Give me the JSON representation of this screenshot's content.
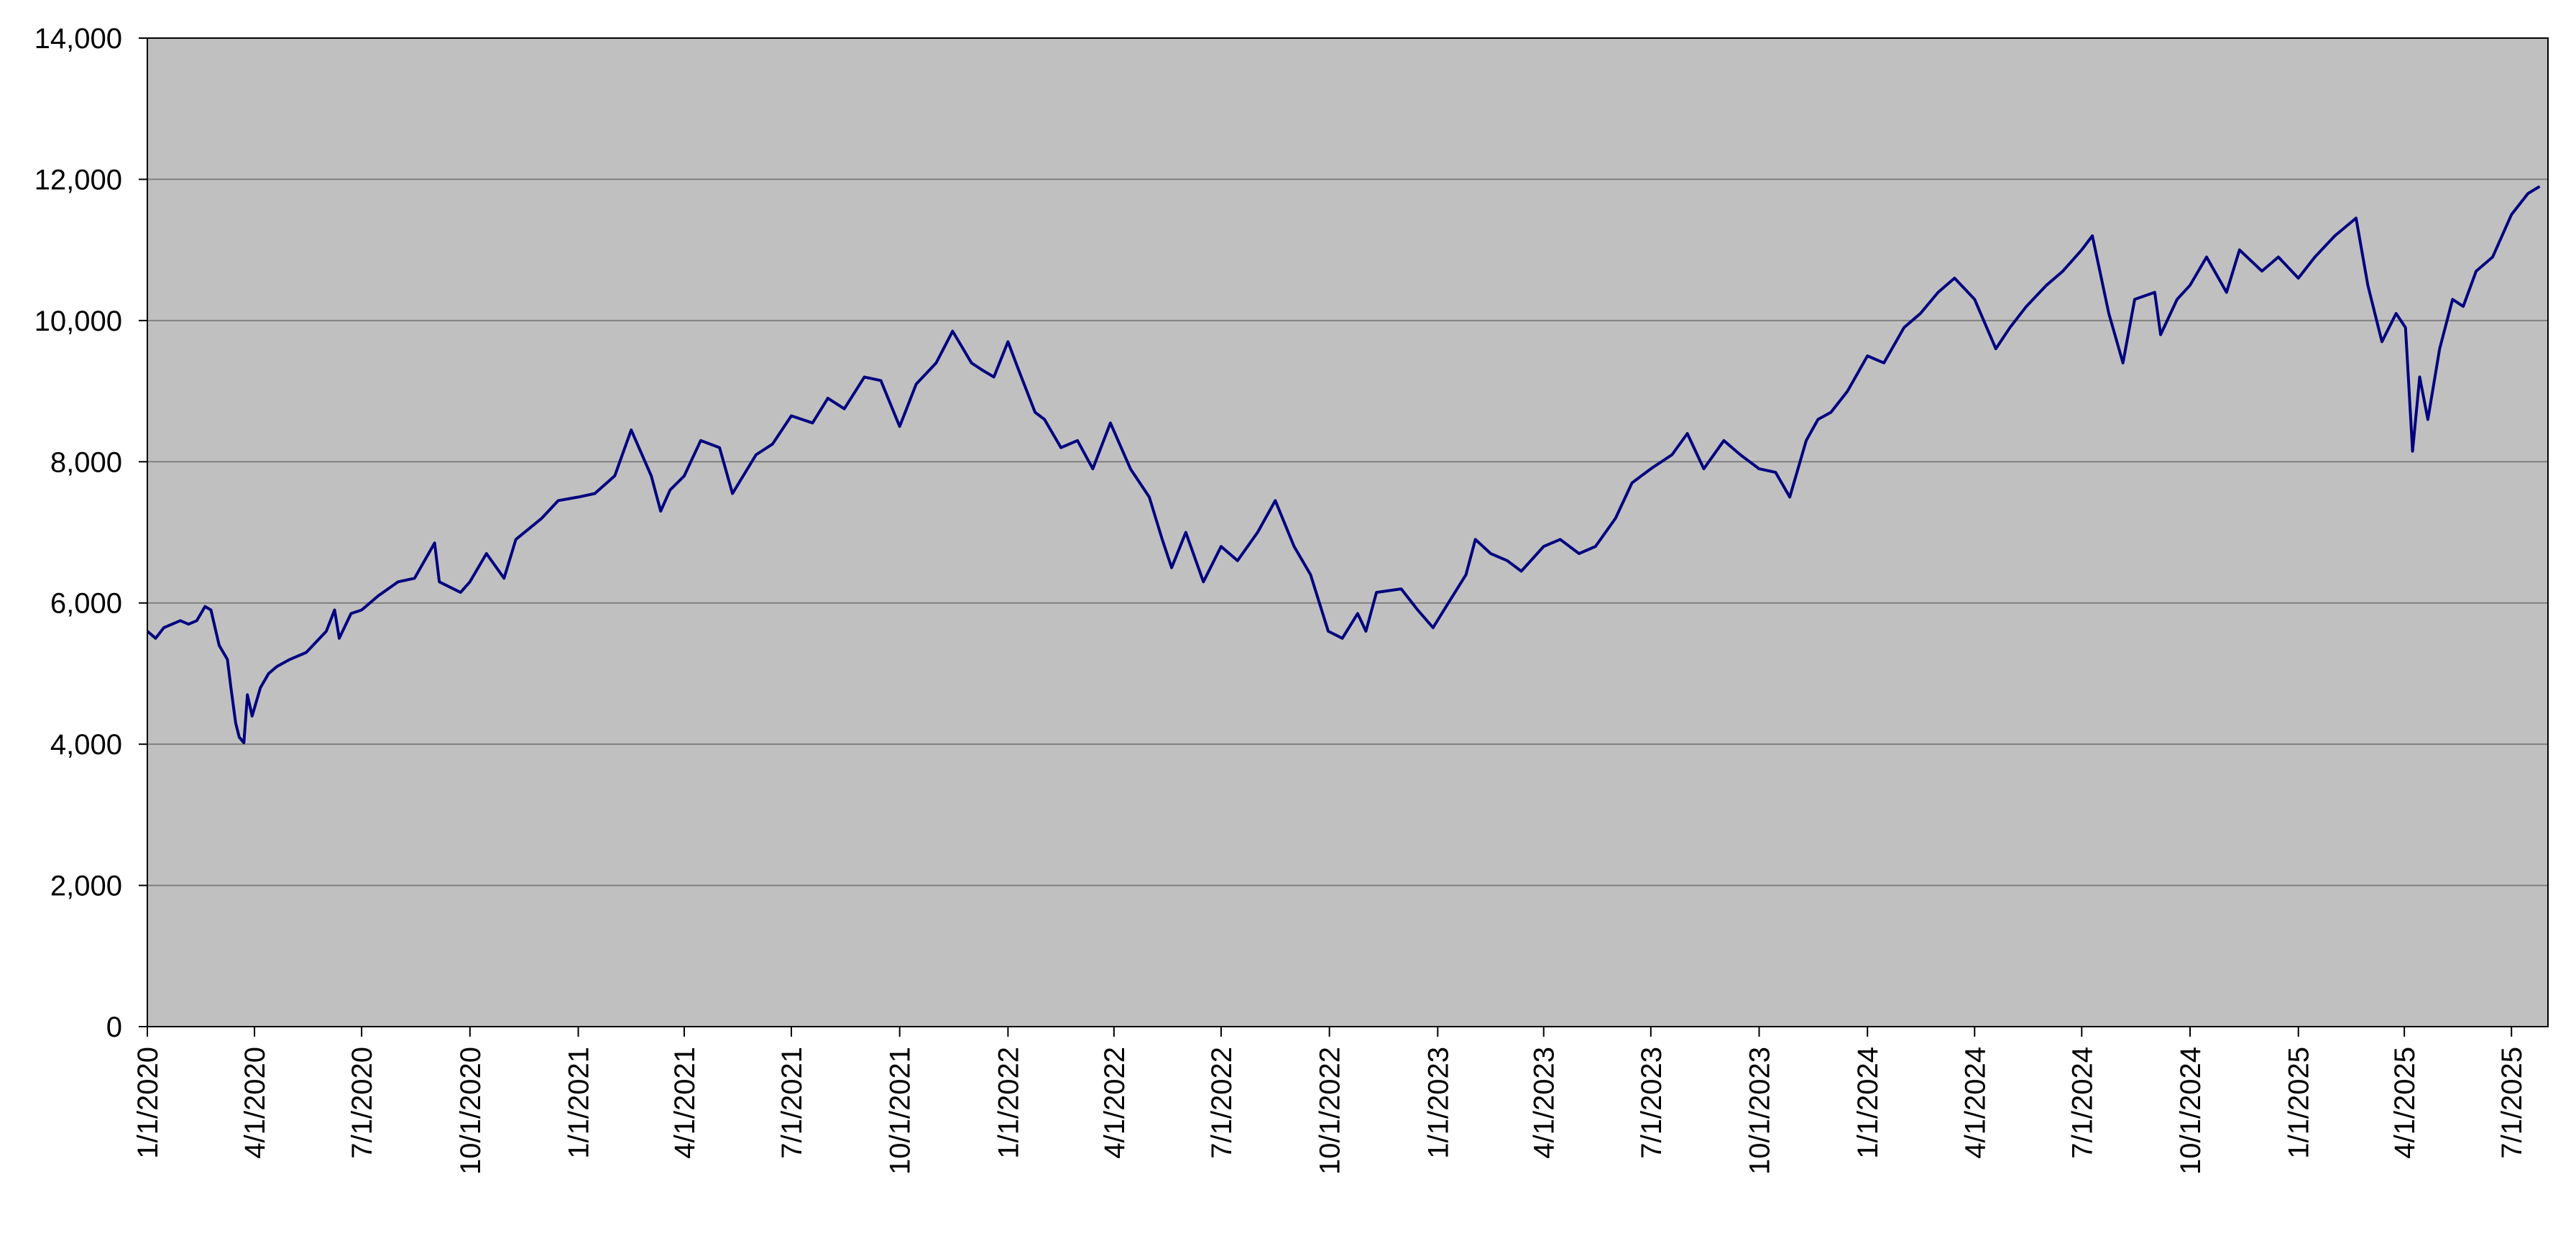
{
  "chart_data": {
    "type": "line",
    "title": "",
    "xlabel": "",
    "ylabel": "",
    "x_ticks": [
      "1/1/2020",
      "4/1/2020",
      "7/1/2020",
      "10/1/2020",
      "1/1/2021",
      "4/1/2021",
      "7/1/2021",
      "10/1/2021",
      "1/1/2022",
      "4/1/2022",
      "7/1/2022",
      "10/1/2022",
      "1/1/2023",
      "4/1/2023",
      "7/1/2023",
      "10/1/2023",
      "1/1/2024",
      "4/1/2024",
      "7/1/2024",
      "10/1/2024",
      "1/1/2025",
      "4/1/2025",
      "7/1/2025"
    ],
    "xlim": [
      "2020-01-01",
      "2025-08-01"
    ],
    "y_ticks": [
      "0",
      "2,000",
      "4,000",
      "6,000",
      "8,000",
      "10,000",
      "12,000",
      "14,000"
    ],
    "ylim": [
      0,
      14000
    ],
    "grid": "horizontal",
    "legend": "none",
    "colors": {
      "plot_background": "#c0c0c0",
      "line": "#000080",
      "gridline": "#808080"
    },
    "series": [
      {
        "values": [
          [
            "2020-01-01",
            5600
          ],
          [
            "2020-01-08",
            5500
          ],
          [
            "2020-01-15",
            5650
          ],
          [
            "2020-01-22",
            5700
          ],
          [
            "2020-01-29",
            5750
          ],
          [
            "2020-02-05",
            5700
          ],
          [
            "2020-02-12",
            5750
          ],
          [
            "2020-02-19",
            5950
          ],
          [
            "2020-02-24",
            5900
          ],
          [
            "2020-03-02",
            5400
          ],
          [
            "2020-03-09",
            5200
          ],
          [
            "2020-03-12",
            4800
          ],
          [
            "2020-03-16",
            4300
          ],
          [
            "2020-03-19",
            4100
          ],
          [
            "2020-03-23",
            4020
          ],
          [
            "2020-03-26",
            4700
          ],
          [
            "2020-03-30",
            4400
          ],
          [
            "2020-04-06",
            4800
          ],
          [
            "2020-04-13",
            5000
          ],
          [
            "2020-04-20",
            5100
          ],
          [
            "2020-05-01",
            5200
          ],
          [
            "2020-05-15",
            5300
          ],
          [
            "2020-06-01",
            5600
          ],
          [
            "2020-06-08",
            5900
          ],
          [
            "2020-06-12",
            5500
          ],
          [
            "2020-06-22",
            5850
          ],
          [
            "2020-07-01",
            5900
          ],
          [
            "2020-07-15",
            6100
          ],
          [
            "2020-08-01",
            6300
          ],
          [
            "2020-08-15",
            6350
          ],
          [
            "2020-09-01",
            6850
          ],
          [
            "2020-09-05",
            6300
          ],
          [
            "2020-09-23",
            6150
          ],
          [
            "2020-10-01",
            6300
          ],
          [
            "2020-10-15",
            6700
          ],
          [
            "2020-10-30",
            6350
          ],
          [
            "2020-11-09",
            6900
          ],
          [
            "2020-12-01",
            7200
          ],
          [
            "2020-12-15",
            7450
          ],
          [
            "2021-01-01",
            7500
          ],
          [
            "2021-01-15",
            7550
          ],
          [
            "2021-02-01",
            7800
          ],
          [
            "2021-02-15",
            8450
          ],
          [
            "2021-03-04",
            7800
          ],
          [
            "2021-03-12",
            7300
          ],
          [
            "2021-03-20",
            7600
          ],
          [
            "2021-04-01",
            7800
          ],
          [
            "2021-04-15",
            8300
          ],
          [
            "2021-05-01",
            8200
          ],
          [
            "2021-05-12",
            7550
          ],
          [
            "2021-06-01",
            8100
          ],
          [
            "2021-06-15",
            8250
          ],
          [
            "2021-07-01",
            8650
          ],
          [
            "2021-07-19",
            8550
          ],
          [
            "2021-08-01",
            8900
          ],
          [
            "2021-08-15",
            8750
          ],
          [
            "2021-09-01",
            9200
          ],
          [
            "2021-09-15",
            9150
          ],
          [
            "2021-10-01",
            8500
          ],
          [
            "2021-10-15",
            9100
          ],
          [
            "2021-11-01",
            9400
          ],
          [
            "2021-11-15",
            9850
          ],
          [
            "2021-12-01",
            9400
          ],
          [
            "2021-12-10",
            9300
          ],
          [
            "2021-12-20",
            9200
          ],
          [
            "2022-01-01",
            9700
          ],
          [
            "2022-01-10",
            9300
          ],
          [
            "2022-01-24",
            8700
          ],
          [
            "2022-02-01",
            8600
          ],
          [
            "2022-02-15",
            8200
          ],
          [
            "2022-03-01",
            8300
          ],
          [
            "2022-03-14",
            7900
          ],
          [
            "2022-03-29",
            8550
          ],
          [
            "2022-04-15",
            7900
          ],
          [
            "2022-05-01",
            7500
          ],
          [
            "2022-05-12",
            6900
          ],
          [
            "2022-05-20",
            6500
          ],
          [
            "2022-06-01",
            7000
          ],
          [
            "2022-06-16",
            6300
          ],
          [
            "2022-07-01",
            6800
          ],
          [
            "2022-07-15",
            6600
          ],
          [
            "2022-08-01",
            7000
          ],
          [
            "2022-08-16",
            7450
          ],
          [
            "2022-09-01",
            6800
          ],
          [
            "2022-09-15",
            6400
          ],
          [
            "2022-09-30",
            5600
          ],
          [
            "2022-10-12",
            5500
          ],
          [
            "2022-10-25",
            5850
          ],
          [
            "2022-11-01",
            5600
          ],
          [
            "2022-11-10",
            6150
          ],
          [
            "2022-12-01",
            6200
          ],
          [
            "2022-12-15",
            5900
          ],
          [
            "2022-12-28",
            5650
          ],
          [
            "2023-01-10",
            6000
          ],
          [
            "2023-01-25",
            6400
          ],
          [
            "2023-02-02",
            6900
          ],
          [
            "2023-02-15",
            6700
          ],
          [
            "2023-03-01",
            6600
          ],
          [
            "2023-03-13",
            6450
          ],
          [
            "2023-04-01",
            6800
          ],
          [
            "2023-04-15",
            6900
          ],
          [
            "2023-05-01",
            6700
          ],
          [
            "2023-05-15",
            6800
          ],
          [
            "2023-06-01",
            7200
          ],
          [
            "2023-06-15",
            7700
          ],
          [
            "2023-07-01",
            7900
          ],
          [
            "2023-07-19",
            8100
          ],
          [
            "2023-08-01",
            8400
          ],
          [
            "2023-08-15",
            7900
          ],
          [
            "2023-09-01",
            8300
          ],
          [
            "2023-09-15",
            8100
          ],
          [
            "2023-10-01",
            7900
          ],
          [
            "2023-10-15",
            7850
          ],
          [
            "2023-10-27",
            7500
          ],
          [
            "2023-11-10",
            8300
          ],
          [
            "2023-11-20",
            8600
          ],
          [
            "2023-12-01",
            8700
          ],
          [
            "2023-12-15",
            9000
          ],
          [
            "2024-01-01",
            9500
          ],
          [
            "2024-01-15",
            9400
          ],
          [
            "2024-02-01",
            9900
          ],
          [
            "2024-02-15",
            10100
          ],
          [
            "2024-03-01",
            10400
          ],
          [
            "2024-03-15",
            10600
          ],
          [
            "2024-04-01",
            10300
          ],
          [
            "2024-04-19",
            9600
          ],
          [
            "2024-05-01",
            9900
          ],
          [
            "2024-05-15",
            10200
          ],
          [
            "2024-06-01",
            10500
          ],
          [
            "2024-06-15",
            10700
          ],
          [
            "2024-07-01",
            11000
          ],
          [
            "2024-07-10",
            11200
          ],
          [
            "2024-07-24",
            10100
          ],
          [
            "2024-08-05",
            9400
          ],
          [
            "2024-08-15",
            10300
          ],
          [
            "2024-09-01",
            10400
          ],
          [
            "2024-09-06",
            9800
          ],
          [
            "2024-09-20",
            10300
          ],
          [
            "2024-10-01",
            10500
          ],
          [
            "2024-10-15",
            10900
          ],
          [
            "2024-11-01",
            10400
          ],
          [
            "2024-11-12",
            11000
          ],
          [
            "2024-12-01",
            10700
          ],
          [
            "2024-12-15",
            10900
          ],
          [
            "2025-01-01",
            10600
          ],
          [
            "2025-01-15",
            10900
          ],
          [
            "2025-02-01",
            11200
          ],
          [
            "2025-02-19",
            11450
          ],
          [
            "2025-03-01",
            10500
          ],
          [
            "2025-03-13",
            9700
          ],
          [
            "2025-03-25",
            10100
          ],
          [
            "2025-04-02",
            9900
          ],
          [
            "2025-04-08",
            8150
          ],
          [
            "2025-04-14",
            9200
          ],
          [
            "2025-04-21",
            8600
          ],
          [
            "2025-05-01",
            9600
          ],
          [
            "2025-05-12",
            10300
          ],
          [
            "2025-05-21",
            10200
          ],
          [
            "2025-06-01",
            10700
          ],
          [
            "2025-06-15",
            10900
          ],
          [
            "2025-07-01",
            11500
          ],
          [
            "2025-07-15",
            11800
          ],
          [
            "2025-07-25",
            11900
          ]
        ]
      }
    ]
  }
}
